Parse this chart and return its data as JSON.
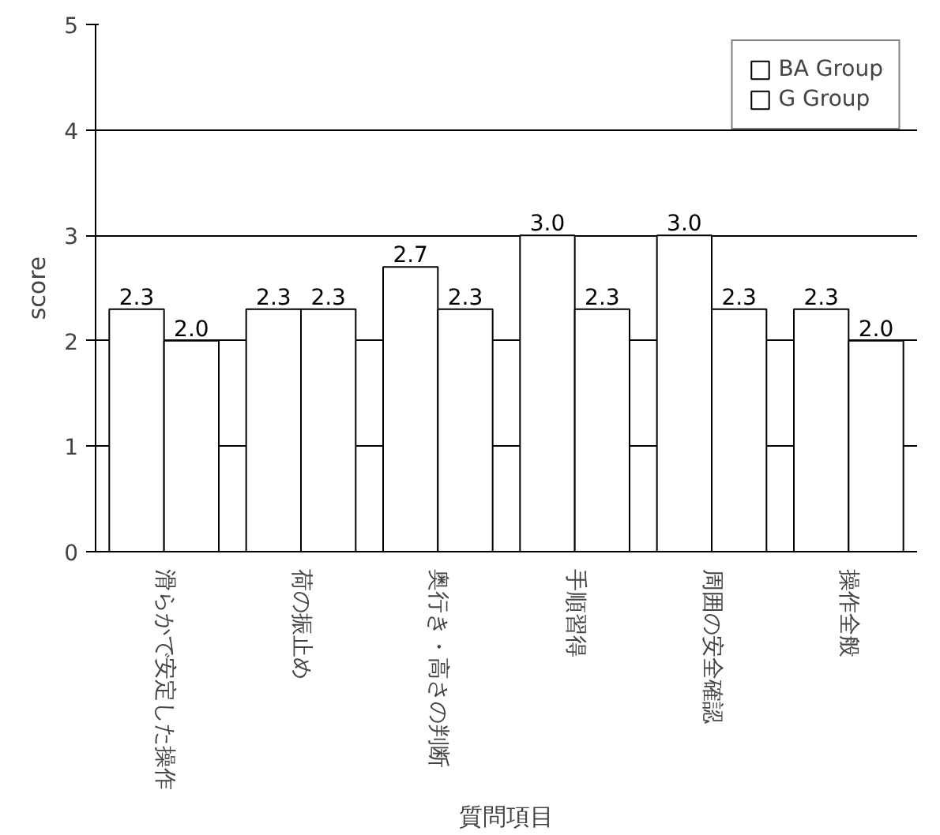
{
  "chart_data": {
    "type": "bar",
    "xlabel": "質問項目",
    "ylabel": "score",
    "categories": [
      "滑らかで安定した操作",
      "荷の振止め",
      "奥行き・高さの判断",
      "手順習得",
      "周囲の安全確認",
      "操作全般"
    ],
    "series": [
      {
        "name": "BA Group",
        "color": "#ffffff",
        "values": [
          2.3,
          2.3,
          2.7,
          3.0,
          3.0,
          2.3
        ],
        "value_labels": [
          "2.3",
          "2.3",
          "2.7",
          "3.0",
          "3.0",
          "2.3"
        ]
      },
      {
        "name": "G Group",
        "color": "#ffffff",
        "values": [
          2.0,
          2.3,
          2.3,
          2.3,
          2.3,
          2.0
        ],
        "value_labels": [
          "2.0",
          "2.3",
          "2.3",
          "2.3",
          "2.3",
          "2.0"
        ]
      }
    ],
    "ylim": [
      0,
      5
    ],
    "yticks": [
      0,
      1,
      2,
      3,
      4,
      5
    ],
    "grid": "y",
    "legend": "top right"
  }
}
